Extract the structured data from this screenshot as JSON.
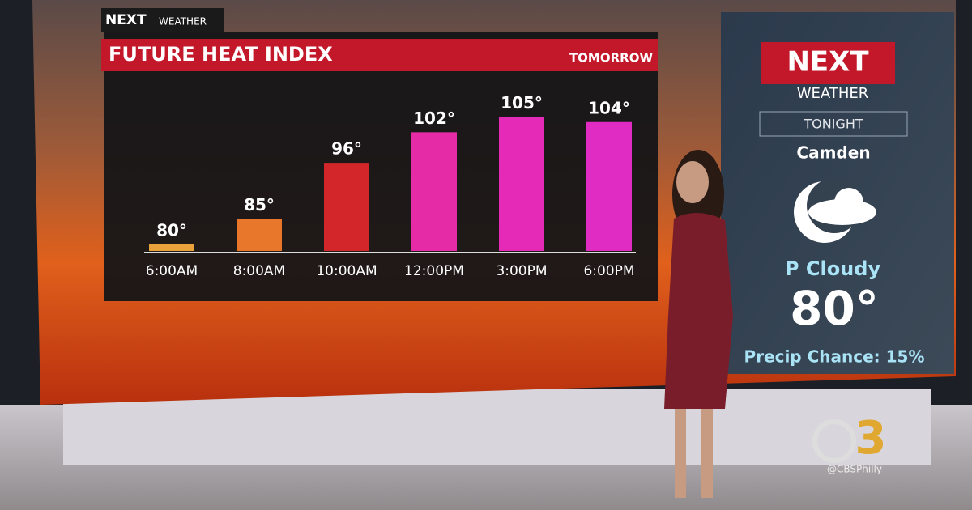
{
  "brand": {
    "logo": "NEXT",
    "sub": "WEATHER"
  },
  "chart_data": {
    "type": "bar",
    "title": "FUTURE HEAT INDEX",
    "subtitle": "TOMORROW",
    "categories": [
      "6:00AM",
      "8:00AM",
      "10:00AM",
      "12:00PM",
      "3:00PM",
      "6:00PM"
    ],
    "values": [
      80,
      85,
      96,
      102,
      105,
      104
    ],
    "value_labels": [
      "80°",
      "85°",
      "96°",
      "102°",
      "105°",
      "104°"
    ],
    "colors": [
      "#e9a23a",
      "#e8772c",
      "#d3262a",
      "#e52ca6",
      "#e42ab6",
      "#e02cc2"
    ],
    "ylim": [
      78.7,
      110
    ]
  },
  "panel": {
    "logo": "NEXT",
    "sub": "WEATHER",
    "period": "TONIGHT",
    "city": "Camden",
    "condition": "P Cloudy",
    "temp": "80°",
    "precip": "Precip Chance: 15%"
  },
  "station": {
    "logo": "3",
    "handle": "@CBSPhilly"
  }
}
